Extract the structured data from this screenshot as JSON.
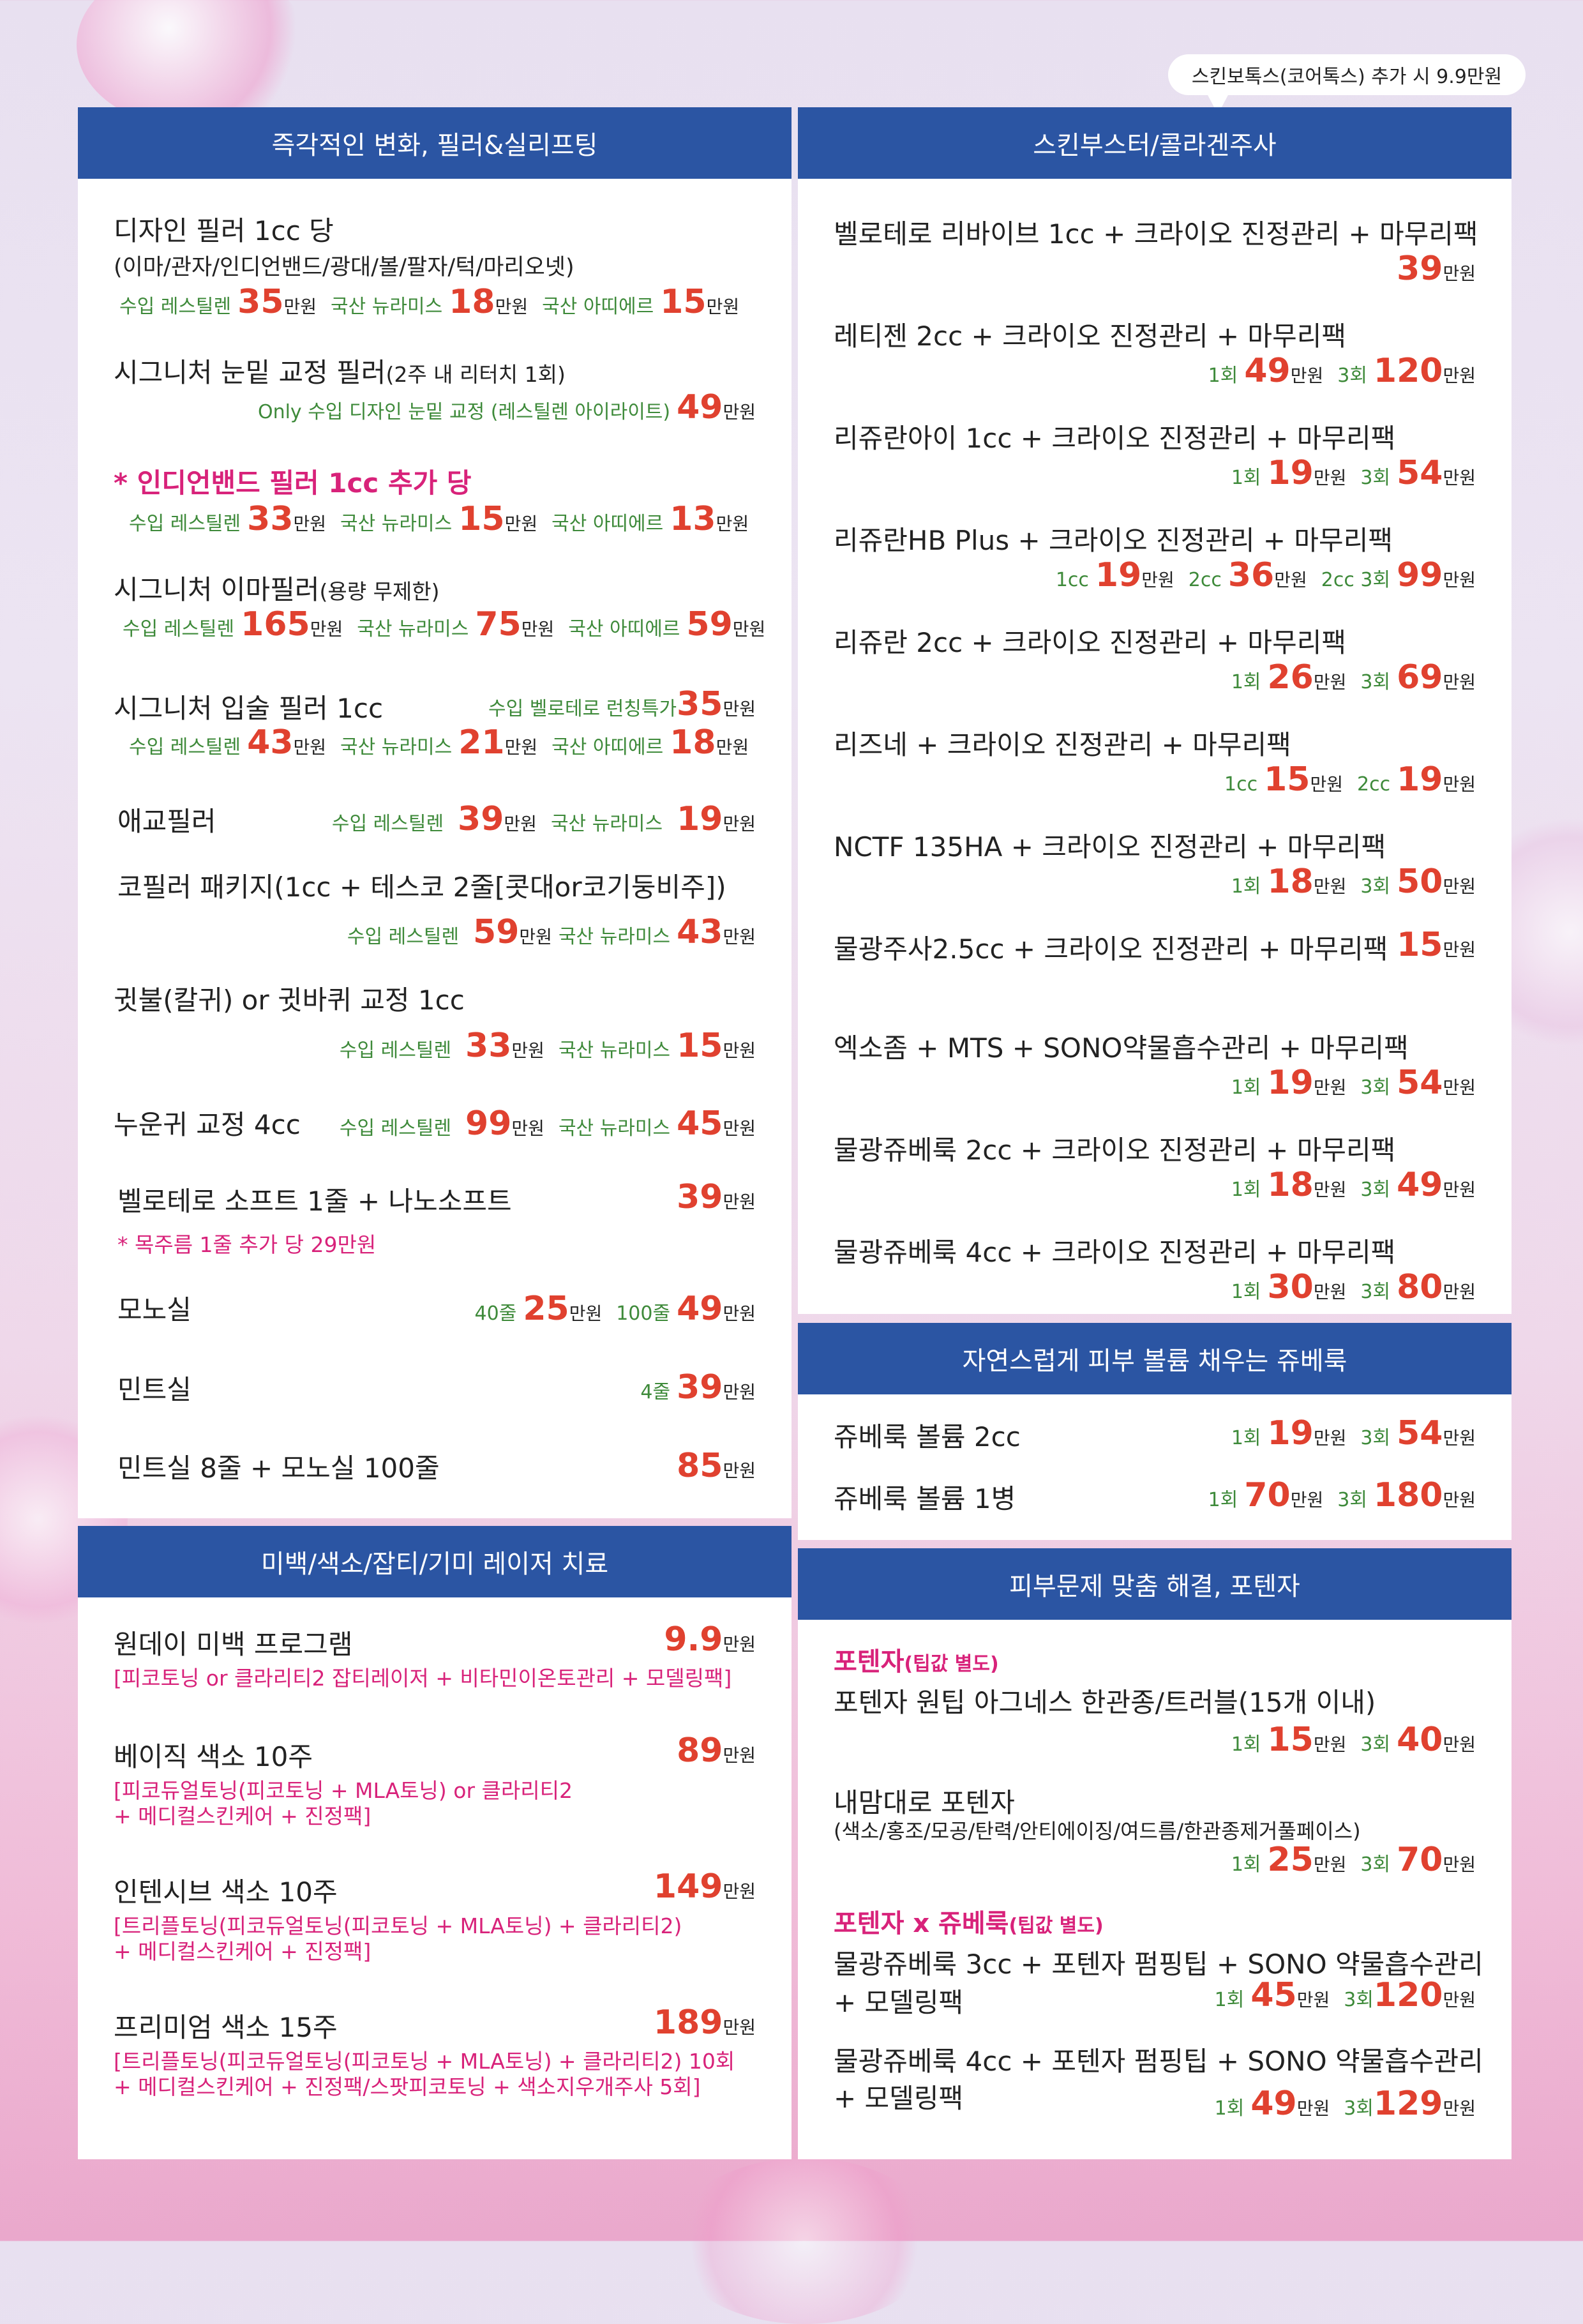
{
  "bubble_note": "스킨보톡스(코어톡스) 추가 시 9.9만원",
  "unit": "만원",
  "filler": {
    "header": "즉각적인 변화, 필러&실리프팅",
    "i1_title": "디자인 필러 1cc 당",
    "i1_sub": "(이마/관자/인디언밴드/광대/볼/팔자/턱/마리오넷)",
    "i1_p": [
      {
        "label": "수입 레스틸렌",
        "value": "35"
      },
      {
        "label": "국산 뉴라미스",
        "value": "18"
      },
      {
        "label": "국산 아띠에르",
        "value": "15"
      }
    ],
    "i2_title": "시그니처 눈밑 교정 필러",
    "i2_title_small": "(2주 내 리터치 1회)",
    "i2_p_label": "Only 수입 디자인 눈밑 교정 (레스틸렌 아이라이트)",
    "i2_p_value": "49",
    "i3_title": "* 인디언밴드 필러 1cc 추가 당",
    "i3_p": [
      {
        "label": "수입 레스틸렌",
        "value": "33"
      },
      {
        "label": "국산 뉴라미스",
        "value": "15"
      },
      {
        "label": "국산 아띠에르",
        "value": "13"
      }
    ],
    "i4_title": "시그니처 이마필러",
    "i4_title_small": "(용량 무제한)",
    "i4_p": [
      {
        "label": "수입 레스틸렌",
        "value": "165"
      },
      {
        "label": "국산 뉴라미스",
        "value": "75"
      },
      {
        "label": "국산 아띠에르",
        "value": "59"
      }
    ],
    "i5_title": "시그니처 입술 필러 1cc",
    "i5_extra_label": "수입 벨로테로 런칭특가",
    "i5_extra_value": "35",
    "i5_p": [
      {
        "label": "수입 레스틸렌",
        "value": "43"
      },
      {
        "label": "국산 뉴라미스",
        "value": "21"
      },
      {
        "label": "국산 아띠에르",
        "value": "18"
      }
    ],
    "i6_title": "애교필러",
    "i6_p": [
      {
        "label": "수입 레스틸렌",
        "value": "39"
      },
      {
        "label": "국산 뉴라미스",
        "value": "19"
      }
    ],
    "i7_title": "코필러 패키지(1cc + 테스코 2줄[콧대or코기둥비주])",
    "i7_p": [
      {
        "label": "수입 레스틸렌",
        "value": "59"
      },
      {
        "label": "국산 뉴라미스",
        "value": "43"
      }
    ],
    "i8_title": "귓불(칼귀) or 귓바퀴 교정 1cc",
    "i8_p": [
      {
        "label": "수입 레스틸렌",
        "value": "33"
      },
      {
        "label": "국산 뉴라미스",
        "value": "15"
      }
    ],
    "i9_title": "누운귀 교정 4cc",
    "i9_p": [
      {
        "label": "수입 레스틸렌",
        "value": "99"
      },
      {
        "label": "국산 뉴라미스",
        "value": "45"
      }
    ],
    "i10_title": "벨로테로 소프트 1줄 + 나노소프트",
    "i10_value": "39",
    "i10_note": "* 목주름 1줄 추가 당 29만원",
    "i11_title": "모노실",
    "i11_p": [
      {
        "label": "40줄",
        "value": "25"
      },
      {
        "label": "100줄",
        "value": "49"
      }
    ],
    "i12_title": "민트실",
    "i12_p_label": "4줄",
    "i12_p_value": "39",
    "i13_title": "민트실 8줄 + 모노실 100줄",
    "i13_value": "85"
  },
  "booster": {
    "header": "스킨부스터/콜라겐주사",
    "items": [
      {
        "title": "벨로테로 리바이브 1cc + 크라이오 진정관리 + 마무리팩",
        "p": [
          {
            "label": "",
            "value": "39"
          }
        ]
      },
      {
        "title": "레티젠 2cc + 크라이오 진정관리 + 마무리팩",
        "p": [
          {
            "label": "1회",
            "value": "49"
          },
          {
            "label": "3회",
            "value": "120"
          }
        ]
      },
      {
        "title": "리쥬란아이 1cc + 크라이오 진정관리 + 마무리팩",
        "p": [
          {
            "label": "1회",
            "value": "19"
          },
          {
            "label": "3회",
            "value": "54"
          }
        ]
      },
      {
        "title": "리쥬란HB Plus + 크라이오 진정관리 + 마무리팩",
        "p": [
          {
            "label": "1cc",
            "value": "19"
          },
          {
            "label": "2cc",
            "value": "36"
          },
          {
            "label": "2cc 3회",
            "value": "99"
          }
        ]
      },
      {
        "title": "리쥬란 2cc + 크라이오 진정관리 + 마무리팩",
        "p": [
          {
            "label": "1회",
            "value": "26"
          },
          {
            "label": "3회",
            "value": "69"
          }
        ]
      },
      {
        "title": "리즈네 + 크라이오 진정관리 + 마무리팩",
        "p": [
          {
            "label": "1cc",
            "value": "15"
          },
          {
            "label": "2cc",
            "value": "19"
          }
        ]
      },
      {
        "title": "NCTF 135HA + 크라이오 진정관리 + 마무리팩",
        "p": [
          {
            "label": "1회",
            "value": "18"
          },
          {
            "label": "3회",
            "value": "50"
          }
        ]
      },
      {
        "title": "물광주사2.5cc + 크라이오 진정관리 + 마무리팩",
        "p": [
          {
            "label": "",
            "value": "15"
          }
        ]
      },
      {
        "title": "엑소좀 + MTS + SONO약물흡수관리 + 마무리팩",
        "p": [
          {
            "label": "1회",
            "value": "19"
          },
          {
            "label": "3회",
            "value": "54"
          }
        ]
      },
      {
        "title": "물광쥬베룩 2cc + 크라이오 진정관리 + 마무리팩",
        "p": [
          {
            "label": "1회",
            "value": "18"
          },
          {
            "label": "3회",
            "value": "49"
          }
        ]
      },
      {
        "title": "물광쥬베룩 4cc + 크라이오 진정관리 + 마무리팩",
        "p": [
          {
            "label": "1회",
            "value": "30"
          },
          {
            "label": "3회",
            "value": "80"
          }
        ]
      }
    ]
  },
  "juvelook": {
    "header": "자연스럽게 피부 볼륨 채우는 쥬베룩",
    "items": [
      {
        "title": "쥬베룩 볼륨 2cc",
        "p": [
          {
            "label": "1회",
            "value": "19"
          },
          {
            "label": "3회",
            "value": "54"
          }
        ]
      },
      {
        "title": "쥬베룩 볼륨 1병",
        "p": [
          {
            "label": "1회",
            "value": "70"
          },
          {
            "label": "3회",
            "value": "180"
          }
        ]
      }
    ]
  },
  "laser": {
    "header": "미백/색소/잡티/기미 레이저 치료",
    "items": [
      {
        "title": "원데이 미백 프로그램",
        "value": "9.9",
        "note1": "[피코토닝 or 클라리티2 잡티레이저 + 비타민이온토관리 + 모델링팩]",
        "note2": ""
      },
      {
        "title": "베이직 색소 10주",
        "value": "89",
        "note1": "[피코듀얼토닝(피코토닝 + MLA토닝) or 클라리티2",
        "note2": "+ 메디컬스킨케어 + 진정팩]"
      },
      {
        "title": "인텐시브 색소 10주",
        "value": "149",
        "note1": "[트리플토닝(피코듀얼토닝(피코토닝 + MLA토닝) + 클라리티2)",
        "note2": "+ 메디컬스킨케어 + 진정팩]"
      },
      {
        "title": "프리미엄 색소 15주",
        "value": "189",
        "note1": "[트리플토닝(피코듀얼토닝(피코토닝 + MLA토닝) + 클라리티2) 10회",
        "note2": "+ 메디컬스킨케어 + 진정팩/스팟피코토닝 + 색소지우개주사 5회]"
      }
    ]
  },
  "potenza": {
    "header": "피부문제 맞춤 해결, 포텐자",
    "sec1_title": "포텐자",
    "sec1_small": "(팁값 별도)",
    "i1_title": "포텐자 원팁 아그네스 한관종/트러블(15개 이내)",
    "i1_p": [
      {
        "label": "1회",
        "value": "15"
      },
      {
        "label": "3회",
        "value": "40"
      }
    ],
    "i2_title": "내맘대로 포텐자",
    "i2_sub": "(색소/홍조/모공/탄력/안티에이징/여드름/한관종제거풀페이스)",
    "i2_p": [
      {
        "label": "1회",
        "value": "25"
      },
      {
        "label": "3회",
        "value": "70"
      }
    ],
    "sec2_title": "포텐자 x 쥬베룩",
    "sec2_small": "(팁값 별도)",
    "i3_line1": "물광쥬베룩 3cc + 포텐자 펌핑팁 + SONO 약물흡수관리",
    "i3_line2": "+ 모델링팩",
    "i3_p": [
      {
        "label": "1회",
        "value": "45"
      },
      {
        "label": "3회",
        "value": "120"
      }
    ],
    "i4_line1": "물광쥬베룩 4cc + 포텐자 펌핑팁 + SONO 약물흡수관리",
    "i4_line2": "+ 모델링팩",
    "i4_p": [
      {
        "label": "1회",
        "value": "49"
      },
      {
        "label": "3회",
        "value": "129"
      }
    ]
  },
  "colors": {
    "header": "#2b55a3",
    "price": "#e0412f",
    "label": "#3e8a3a",
    "note": "#d8227a"
  }
}
